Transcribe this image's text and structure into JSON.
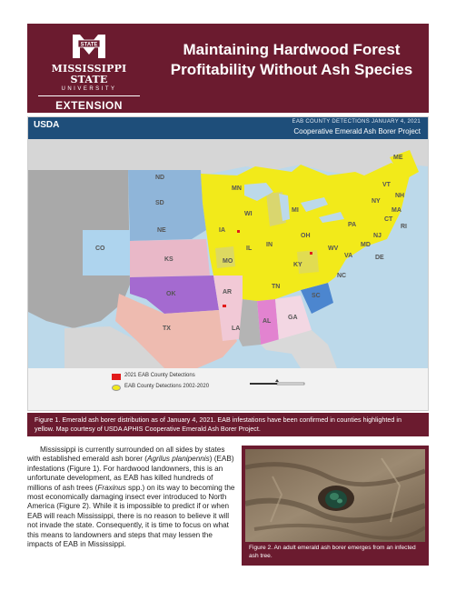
{
  "header": {
    "logo_university_line1": "MISSISSIPPI STATE",
    "logo_university_line2": "UNIVERSITY",
    "logo_extension": "EXTENSION",
    "logo_mark_text": "STATE",
    "title": "Maintaining Hardwood Forest Profitability Without Ash Species"
  },
  "map": {
    "agency": "USDA",
    "caption_line1": "EAB COUNTY DETECTIONS     JANUARY 4, 2021",
    "caption_line2": "Cooperative Emerald Ash Borer Project",
    "state_labels": [
      "ME",
      "NY",
      "RI",
      "DE",
      "MN",
      "SD",
      "WI",
      "MI",
      "NE",
      "IA",
      "CO",
      "KS",
      "MO",
      "KY",
      "OK",
      "TX",
      "AL",
      "GA",
      "IN",
      "OH",
      "PA",
      "VA",
      "NC",
      "SC",
      "TN",
      "AR",
      "LA",
      "WV",
      "VT",
      "NH",
      "MA",
      "CT",
      "MD",
      "NJ",
      "IL",
      "ND"
    ],
    "legend": [
      {
        "label": "2021 EAB County Detections",
        "color": "#e21b1b"
      },
      {
        "label": "EAB County Detections 2002-2020",
        "color": "#f2ea1a"
      }
    ],
    "colors": {
      "water": "#bcd9ea",
      "land": "#a9a9a9",
      "infested": "#f2ea1a"
    }
  },
  "figure1_caption": "Figure 1. Emerald ash borer distribution as of January 4, 2021. EAB infestations have been confirmed in counties highlighted in yellow. Map courtesy of USDA APHIS Cooperative Emerald Ash Borer Project.",
  "body": {
    "p1_before_sci1": "Mississippi is currently surrounded on all sides by states with established emerald ash borer (",
    "sci1": "Agrilus planipennis",
    "p1_after_sci1": ") (EAB) infestations (Figure 1). For hardwood landowners, this is an unfortunate development, as EAB has killed hundreds of millions of ash trees (",
    "sci2": "Fraxinus",
    "p1_after_sci2": " spp.) on its way to becoming the most economically damaging insect ever introduced to North America (Figure 2). While it is impossible to predict if or when EAB will reach Mississippi, there is no reason to believe it will not invade the state. Consequently, it is time to focus on what this means to landowners and steps that may lessen the impacts of EAB in Mississippi."
  },
  "figure2_caption": "Figure 2. An adult emerald ash borer emerges from an infected ash tree."
}
